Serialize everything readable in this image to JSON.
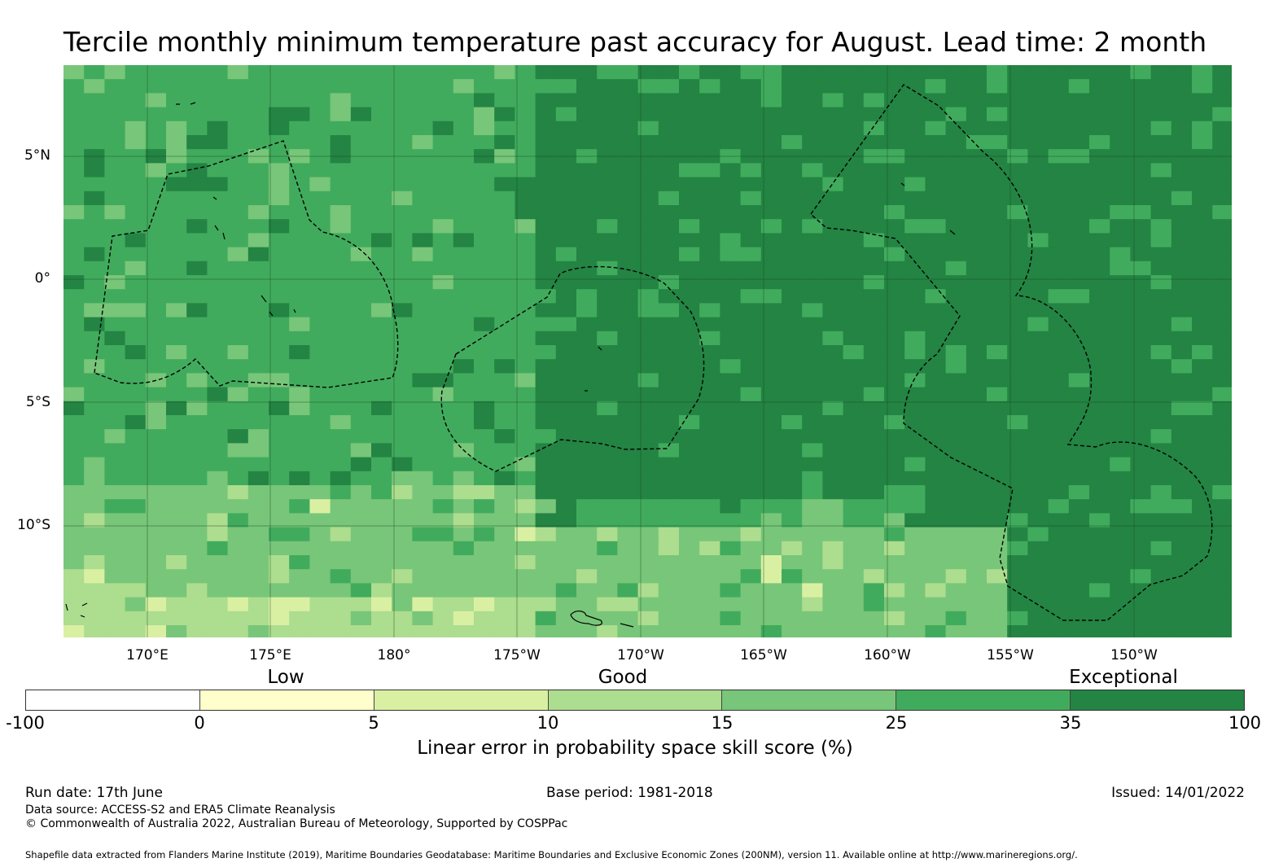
{
  "title": "Tercile monthly minimum temperature past accuracy for August. Lead time: 2 month",
  "map": {
    "lat_labels": [
      "5°N",
      "0°",
      "5°S",
      "10°S"
    ],
    "lon_labels": [
      "170°E",
      "175°E",
      "180°",
      "175°W",
      "170°W",
      "165°W",
      "160°W",
      "155°W",
      "150°W"
    ],
    "score_levels": [
      {
        "range": "-100 to 0",
        "color": "#ffffff"
      },
      {
        "range": "0 to 5",
        "color": "#ffffcc"
      },
      {
        "range": "5 to 10",
        "color": "#d9f0a3"
      },
      {
        "range": "10 to 15",
        "color": "#addd8e"
      },
      {
        "range": "15 to 25",
        "color": "#78c679"
      },
      {
        "range": "25 to 35",
        "color": "#41ab5d"
      },
      {
        "range": "35 to 100",
        "color": "#238443"
      }
    ]
  },
  "legend": {
    "categories": [
      "Low",
      "Good",
      "Exceptional"
    ],
    "ticks": [
      "-100",
      "0",
      "5",
      "10",
      "15",
      "25",
      "35",
      "100"
    ],
    "colors": [
      "#ffffff",
      "#ffffcc",
      "#d9f0a3",
      "#addd8e",
      "#78c679",
      "#41ab5d",
      "#238443"
    ],
    "title": "Linear error in probability space skill score (%)"
  },
  "footer": {
    "run_date": "Run date: 17th June",
    "base_period": "Base period: 1981-2018",
    "issued": "Issued: 14/01/2022",
    "data_source": "Data source: ACCESS-S2 and ERA5 Climate Reanalysis",
    "copyright": "© Commonwealth of Australia 2022, Australian Bureau of Meteorology, Supported by COSPPac",
    "shapefile": "Shapefile data extracted from Flanders Marine Institute (2019), Maritime Boundaries Geodatabase: Maritime Boundaries and Exclusive Economic Zones (200NM), version 11. Available online at http://www.marineregions.org/."
  }
}
